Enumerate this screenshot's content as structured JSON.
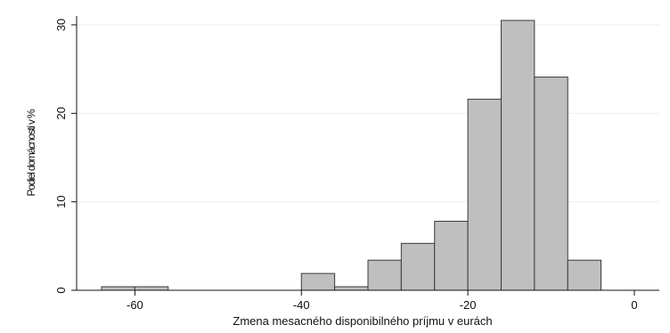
{
  "chart_data": {
    "type": "bar",
    "title": "",
    "xlabel": "Zmena mesacného disponibilného príjmu v eurách",
    "ylabel": "Podiel domácností v %",
    "xlim": [
      -67,
      3
    ],
    "ylim": [
      0,
      31
    ],
    "bin_width": 4,
    "bins": [
      {
        "x0": -64,
        "x1": -60,
        "value": 0.4
      },
      {
        "x0": -60,
        "x1": -56,
        "value": 0.4
      },
      {
        "x0": -56,
        "x1": -52,
        "value": 0
      },
      {
        "x0": -52,
        "x1": -48,
        "value": 0
      },
      {
        "x0": -48,
        "x1": -44,
        "value": 0
      },
      {
        "x0": -44,
        "x1": -40,
        "value": 0
      },
      {
        "x0": -40,
        "x1": -36,
        "value": 1.9
      },
      {
        "x0": -36,
        "x1": -32,
        "value": 0.4
      },
      {
        "x0": -32,
        "x1": -28,
        "value": 3.4
      },
      {
        "x0": -28,
        "x1": -24,
        "value": 5.3
      },
      {
        "x0": -24,
        "x1": -20,
        "value": 7.8
      },
      {
        "x0": -20,
        "x1": -16,
        "value": 21.6
      },
      {
        "x0": -16,
        "x1": -12,
        "value": 30.5
      },
      {
        "x0": -12,
        "x1": -8,
        "value": 24.1
      },
      {
        "x0": -8,
        "x1": -4,
        "value": 3.4
      }
    ],
    "x_ticks": [
      "-60",
      "-40",
      "-20",
      "0"
    ],
    "x_tick_values": [
      -60,
      -40,
      -20,
      0
    ],
    "y_ticks": [
      "0",
      "10",
      "20",
      "30"
    ],
    "y_tick_values": [
      0,
      10,
      20,
      30
    ],
    "grid": true,
    "legend": "none",
    "colors": {
      "bar_fill": "#bfbfbf",
      "bar_stroke": "#3a3a3a",
      "grid": "#eaf1f3",
      "axis": "#111111"
    }
  }
}
